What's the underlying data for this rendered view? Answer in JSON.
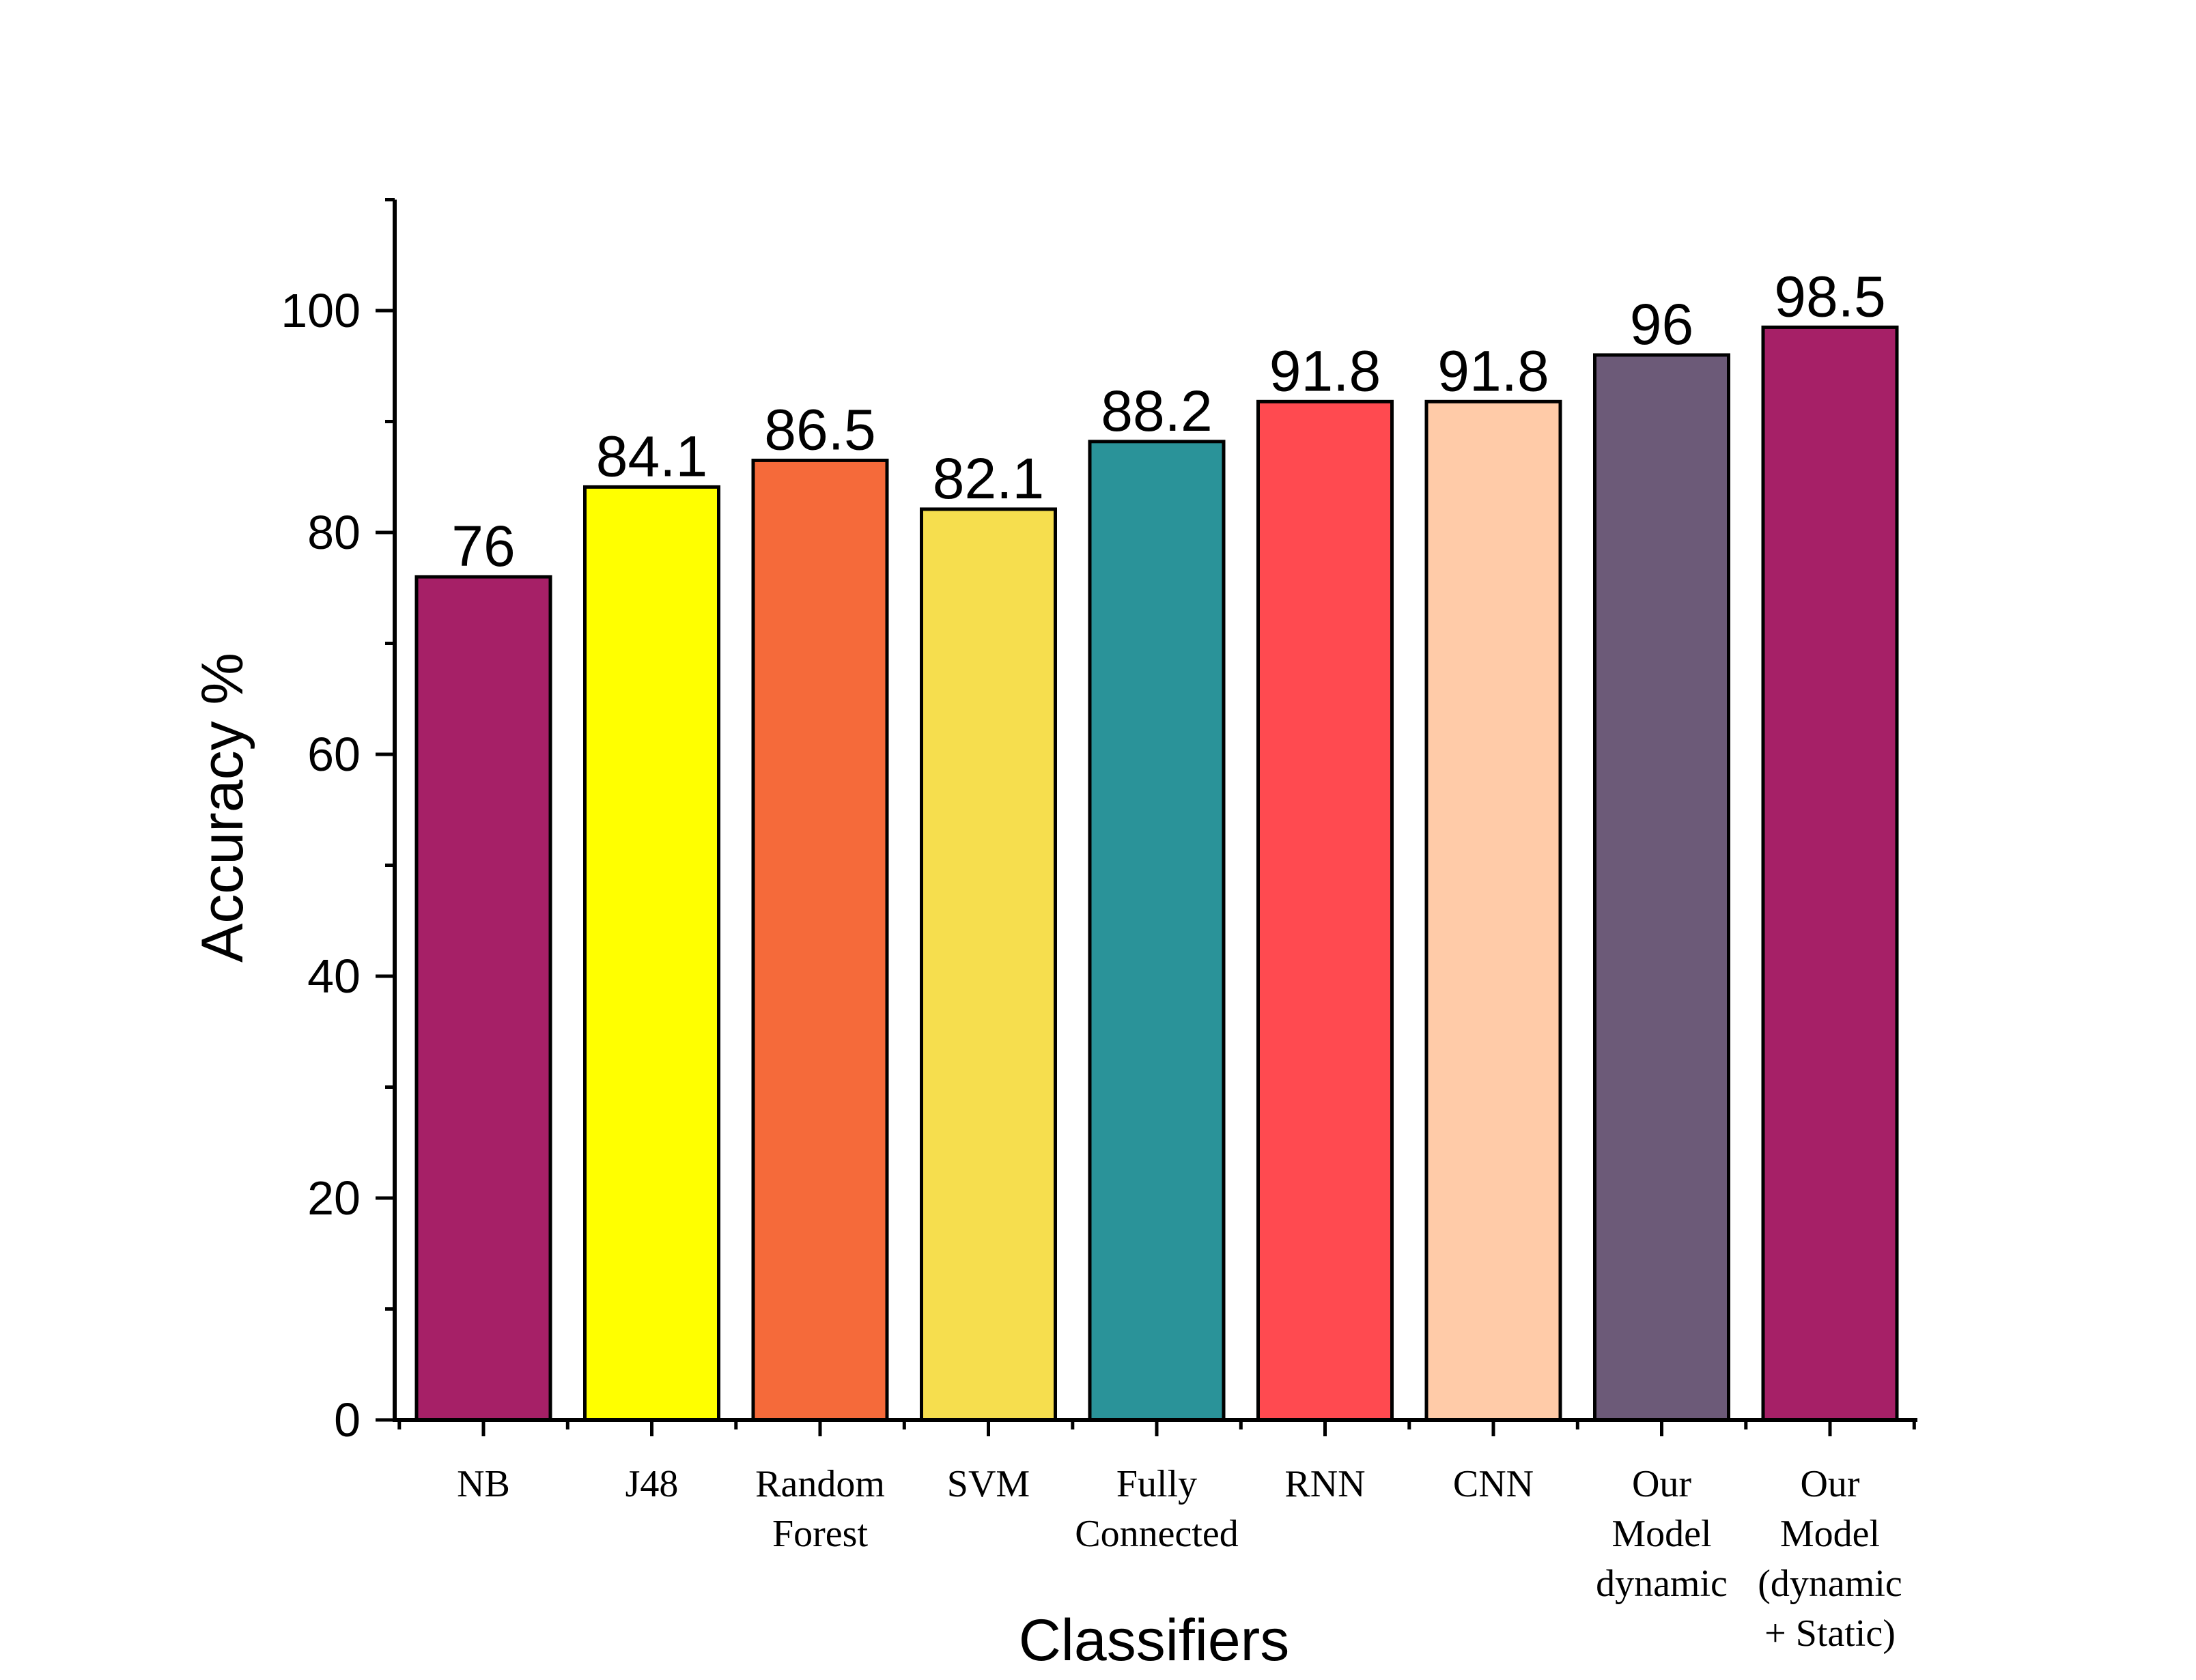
{
  "chart_data": {
    "type": "bar",
    "title": "",
    "xlabel": "Classifiers",
    "ylabel": "Accuracy %",
    "ylim": [
      0,
      110
    ],
    "yticks": [
      0,
      20,
      40,
      60,
      80,
      100
    ],
    "grid": false,
    "legend": "none",
    "categories": [
      [
        "NB"
      ],
      [
        "J48"
      ],
      [
        "Random",
        "Forest"
      ],
      [
        "SVM"
      ],
      [
        "Fully",
        "Connected"
      ],
      [
        "RNN"
      ],
      [
        "CNN"
      ],
      [
        "Our",
        "Model",
        "dynamic"
      ],
      [
        "Our",
        "Model",
        "(dynamic",
        "+ Static)"
      ]
    ],
    "values": [
      76,
      84.1,
      86.5,
      82.1,
      88.2,
      91.8,
      91.8,
      96,
      98.5
    ],
    "value_labels": [
      "76",
      "84.1",
      "86.5",
      "82.1",
      "88.2",
      "91.8",
      "91.8",
      "96",
      "98.5"
    ],
    "colors": [
      "#a62067",
      "#ffff00",
      "#f56a3a",
      "#f6de4e",
      "#2a9399",
      "#ff4a50",
      "#ffcba8",
      "#6c5a78",
      "#a62067"
    ]
  }
}
